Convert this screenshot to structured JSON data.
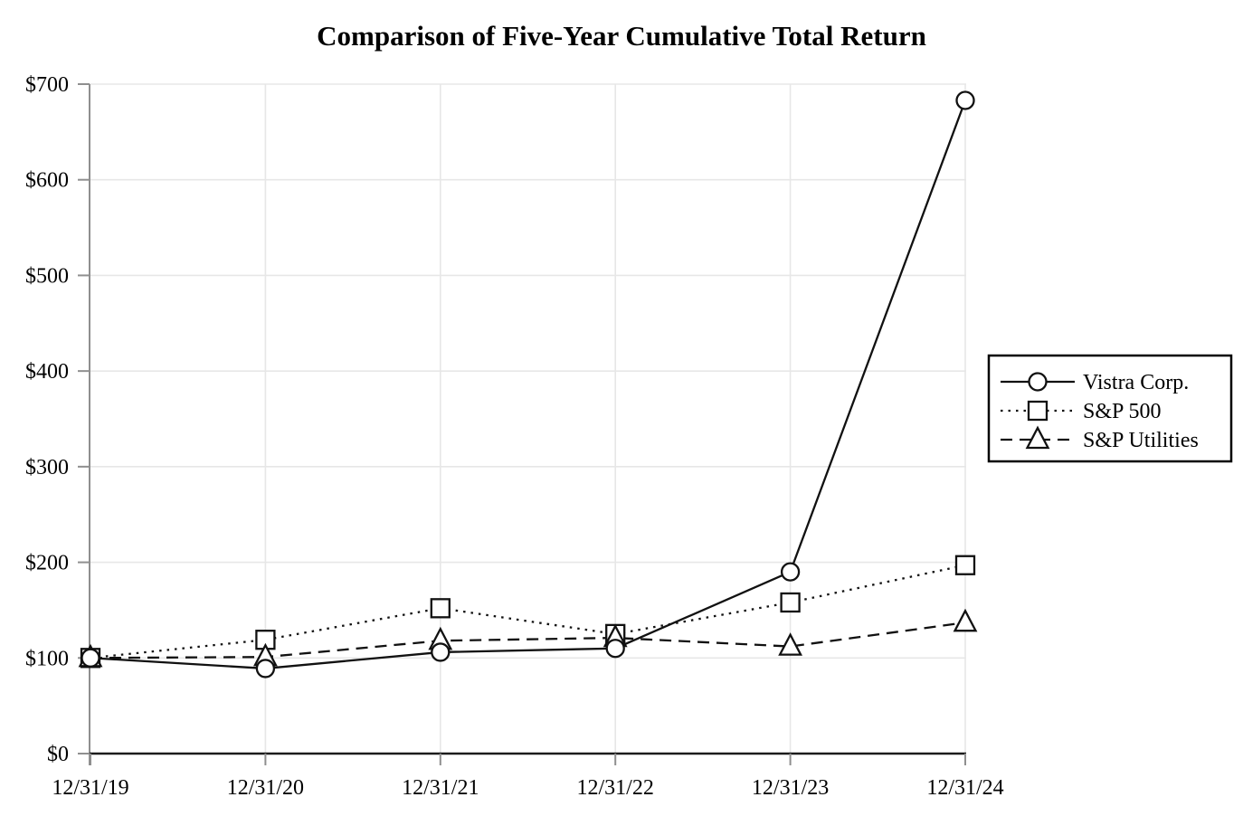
{
  "title": "Comparison of Five-Year Cumulative Total Return",
  "chart_data": {
    "type": "line",
    "title": "Comparison of Five-Year Cumulative Total Return",
    "categories": [
      "12/31/19",
      "12/31/20",
      "12/31/21",
      "12/31/22",
      "12/31/23",
      "12/31/24"
    ],
    "series": [
      {
        "name": "Vistra Corp.",
        "values": [
          100,
          89,
          106,
          110,
          190,
          683
        ],
        "line_style": "solid",
        "marker": "circle"
      },
      {
        "name": "S&P 500",
        "values": [
          100,
          119,
          152,
          125,
          158,
          197
        ],
        "line_style": "dotted",
        "marker": "square"
      },
      {
        "name": "S&P Utilities",
        "values": [
          100,
          101,
          118,
          121,
          112,
          137
        ],
        "line_style": "dashed",
        "marker": "triangle"
      }
    ],
    "xlabel": "",
    "ylabel": "",
    "ylim": [
      0,
      700
    ],
    "y_tick_values": [
      0,
      100,
      200,
      300,
      400,
      500,
      600,
      700
    ],
    "y_tick_labels": [
      "$0",
      "$100",
      "$200",
      "$300",
      "$400",
      "$500",
      "$600",
      "$700"
    ],
    "grid": true,
    "legend_position": "right",
    "colors": {
      "series_stroke": "#111111",
      "marker_fill": "#ffffff",
      "gridline": "#e7e7e7",
      "y_axis": "#8f8f8f",
      "x_axis": "#1c1c1c",
      "text": "#000000",
      "legend_border": "#000000",
      "legend_fill": "#ffffff",
      "background": "#ffffff"
    }
  }
}
